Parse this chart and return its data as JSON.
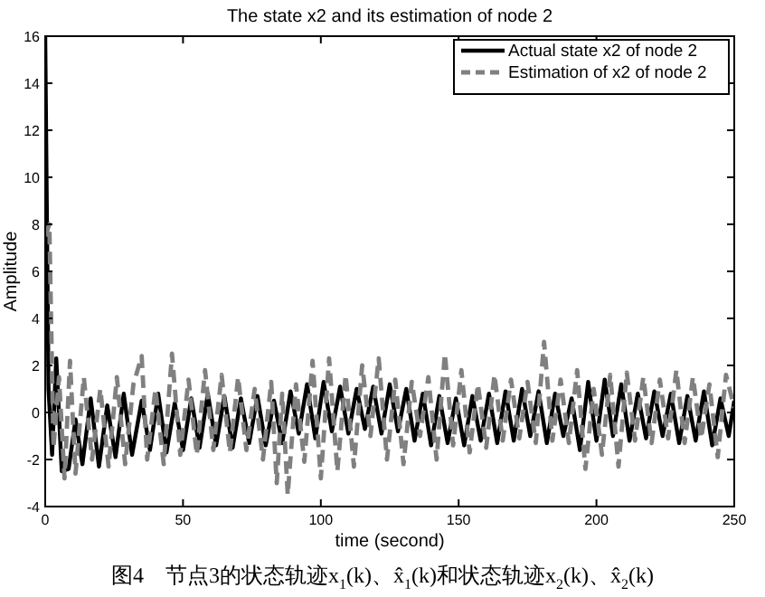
{
  "chart_data": {
    "type": "line",
    "title": "The state x2 and its estimation of node 2",
    "xlabel": "time (second)",
    "ylabel": "Amplitude",
    "annotations": [
      "图4　节点3的状态轨迹x$_{1}$(k)、x̂$_{1}$(k)和状态轨迹x$_{2}$(k)、x̂$_{2}$(k)"
    ],
    "xlim": [
      0,
      250
    ],
    "xticks": [
      0,
      50,
      100,
      150,
      200,
      250
    ],
    "ylim": [
      -4,
      16
    ],
    "yticks": [
      -4,
      -2,
      0,
      2,
      4,
      6,
      8,
      10,
      12,
      14,
      16
    ],
    "legend": "top right",
    "marker": "none",
    "series": [
      {
        "name": "Actual state x2 of node 2",
        "color": "#000000",
        "line_style": "solid",
        "x": [
          0,
          1.2,
          2.5,
          4,
          6,
          8.5,
          11,
          13.5,
          16.5,
          19.5,
          22.5,
          25.5,
          28.5,
          31.5,
          35,
          38,
          41,
          44,
          47,
          50,
          53,
          56,
          59,
          62,
          65,
          68,
          71,
          74,
          77,
          80,
          83,
          86,
          89,
          92,
          95,
          98,
          101,
          104,
          107,
          110,
          113,
          116,
          119,
          122,
          125,
          128,
          131,
          134,
          137,
          140,
          143,
          146,
          149,
          152,
          155,
          158,
          161,
          164,
          167,
          170,
          173,
          176,
          179,
          182,
          185,
          188,
          191,
          194,
          197,
          200,
          203,
          206,
          209,
          212,
          215,
          218,
          221,
          224,
          227,
          230,
          233,
          236,
          239,
          242,
          245,
          248,
          250
        ],
        "values": [
          16,
          1,
          -1.8,
          2.3,
          -2.5,
          -2.4,
          -0.3,
          -2.2,
          0.6,
          -2.3,
          0.3,
          -1.9,
          0.8,
          -1.8,
          0.5,
          -1.6,
          0.8,
          -1.7,
          0.4,
          -1.6,
          0.6,
          -1.5,
          0.8,
          -1.4,
          0.7,
          -1.5,
          0.6,
          -1.3,
          0.7,
          -1.4,
          0.5,
          -1.3,
          0.9,
          -0.9,
          1.2,
          -1.1,
          1.3,
          -0.8,
          1.1,
          -0.9,
          1,
          -0.7,
          1.1,
          -0.9,
          1.2,
          -0.8,
          1,
          -1.2,
          0.8,
          -1.4,
          0.7,
          -1.3,
          0.6,
          -1.4,
          0.7,
          -1.2,
          0.8,
          -1.3,
          0.9,
          -1.2,
          1,
          -1,
          0.9,
          -1.3,
          0.8,
          -1,
          0.6,
          -1.6,
          1.3,
          -1.2,
          1.4,
          -1,
          1.2,
          -1.2,
          0.8,
          -1.1,
          0.9,
          -1,
          0.8,
          -1.3,
          0.7,
          -1.2,
          0.9,
          -1.4,
          0.6,
          -1,
          0.5
        ]
      },
      {
        "name": "Estimation of x2 of node 2",
        "color": "#808080",
        "line_style": "dashed",
        "x": [
          0,
          1.5,
          3,
          5,
          7,
          9,
          11,
          14,
          17,
          20,
          23,
          26,
          29,
          32,
          35,
          37,
          40,
          43,
          46,
          49,
          52,
          55,
          58,
          61,
          64,
          67,
          70,
          73,
          76,
          79,
          82,
          84,
          86,
          88,
          91,
          94,
          97,
          100,
          103,
          106,
          109,
          112,
          115,
          118,
          121,
          124,
          127,
          130,
          133,
          136,
          139,
          142,
          145,
          148,
          151,
          154,
          157,
          160,
          163,
          166,
          169,
          172,
          175,
          178,
          181,
          184,
          187,
          190,
          193,
          196,
          199,
          202,
          205,
          208,
          211,
          214,
          217,
          220,
          223,
          226,
          229,
          232,
          235,
          238,
          241,
          244,
          247,
          250
        ],
        "values": [
          7.5,
          8,
          -1.5,
          1.5,
          -2.8,
          2.2,
          -2.6,
          1.5,
          -2,
          1,
          -2.3,
          1.5,
          -2.2,
          1.2,
          2.4,
          -2,
          1,
          -2.2,
          2.5,
          -1.8,
          1.4,
          -1.8,
          1.8,
          -1.6,
          1.6,
          -1.7,
          1.5,
          -1.6,
          1,
          -2,
          1.3,
          -3,
          0.8,
          -3.5,
          1.2,
          -2.1,
          2.2,
          -2.8,
          2.3,
          -2.5,
          1.6,
          -2.3,
          2,
          -1,
          2.3,
          -2,
          1.4,
          -2.2,
          1.3,
          -1,
          1.5,
          -2,
          2.5,
          -1.4,
          1.8,
          -1.7,
          1.2,
          -1.5,
          1.6,
          -1.2,
          1.4,
          -1.1,
          1.3,
          -1.3,
          3,
          -1.2,
          1.4,
          -1.3,
          1.8,
          -2.4,
          1,
          -1.8,
          1.6,
          -2.3,
          1.7,
          -1.2,
          1.5,
          -1.3,
          1.4,
          -1.1,
          1.8,
          -1.3,
          1.5,
          -1.1,
          1.2,
          -1.9,
          1.6,
          0.2
        ]
      }
    ]
  }
}
